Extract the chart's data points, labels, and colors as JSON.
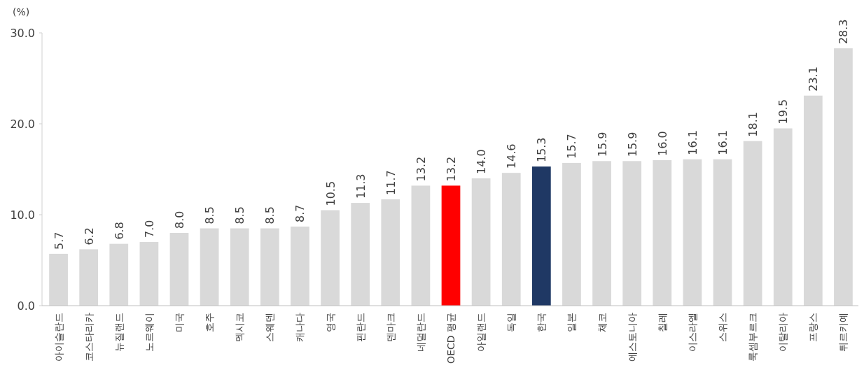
{
  "chart_data": {
    "type": "bar",
    "ylabel": "(%)",
    "categories": [
      "아이슬란드",
      "코스타리카",
      "뉴질랜드",
      "노르웨이",
      "미국",
      "호주",
      "멕시코",
      "스웨덴",
      "캐나다",
      "영국",
      "핀란드",
      "덴마크",
      "네덜란드",
      "OECD 평균",
      "아일랜드",
      "독일",
      "한국",
      "일본",
      "체코",
      "에스토니아",
      "칠레",
      "이스라엘",
      "스위스",
      "룩셈부르크",
      "이탈리아",
      "프랑스",
      "튀르키예"
    ],
    "values": [
      5.7,
      6.2,
      6.8,
      7.0,
      8.0,
      8.5,
      8.5,
      8.5,
      8.7,
      10.5,
      11.3,
      11.7,
      13.2,
      13.2,
      14.0,
      14.6,
      15.3,
      15.7,
      15.9,
      15.9,
      16.0,
      16.1,
      16.1,
      18.1,
      19.5,
      23.1,
      28.3
    ],
    "value_labels": [
      "5.7",
      "6.2",
      "6.8",
      "7.0",
      "8.0",
      "8.5",
      "8.5",
      "8.5",
      "8.7",
      "10.5",
      "11.3",
      "11.7",
      "13.2",
      "13.2",
      "14.0",
      "14.6",
      "15.3",
      "15.7",
      "15.9",
      "15.9",
      "16.0",
      "16.1",
      "16.1",
      "18.1",
      "19.5",
      "23.1",
      "28.3"
    ],
    "colors": [
      "#d9d9d9",
      "#d9d9d9",
      "#d9d9d9",
      "#d9d9d9",
      "#d9d9d9",
      "#d9d9d9",
      "#d9d9d9",
      "#d9d9d9",
      "#d9d9d9",
      "#d9d9d9",
      "#d9d9d9",
      "#d9d9d9",
      "#d9d9d9",
      "#ff0000",
      "#d9d9d9",
      "#d9d9d9",
      "#1f3864",
      "#d9d9d9",
      "#d9d9d9",
      "#d9d9d9",
      "#d9d9d9",
      "#d9d9d9",
      "#d9d9d9",
      "#d9d9d9",
      "#d9d9d9",
      "#d9d9d9",
      "#d9d9d9"
    ],
    "ylim": [
      0,
      30
    ],
    "yticks": [
      {
        "value": 0,
        "label": "0.0"
      },
      {
        "value": 10,
        "label": "10.0"
      },
      {
        "value": 20,
        "label": "20.0"
      },
      {
        "value": 30,
        "label": "30.0"
      }
    ],
    "grid": false
  }
}
